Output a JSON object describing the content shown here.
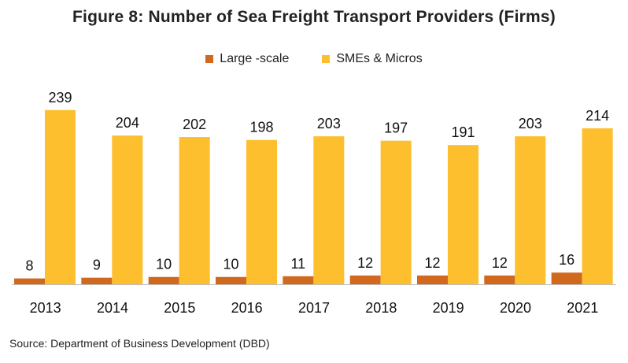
{
  "chart_data": {
    "type": "bar",
    "title": "Figure 8: Number of Sea Freight Transport Providers (Firms)",
    "categories": [
      "2013",
      "2014",
      "2015",
      "2016",
      "2017",
      "2018",
      "2019",
      "2020",
      "2021"
    ],
    "series": [
      {
        "name": "Large -scale",
        "color": "#D0681E",
        "values": [
          8,
          9,
          10,
          10,
          11,
          12,
          12,
          12,
          16
        ]
      },
      {
        "name": "SMEs & Micros",
        "color": "#FDBF2D",
        "values": [
          239,
          204,
          202,
          198,
          203,
          197,
          191,
          203,
          214
        ]
      }
    ],
    "ylim": [
      0,
      260
    ],
    "grid": false,
    "legend": "top-center",
    "data_labels": true
  },
  "source": "Source:  Department of Business Development (DBD)"
}
